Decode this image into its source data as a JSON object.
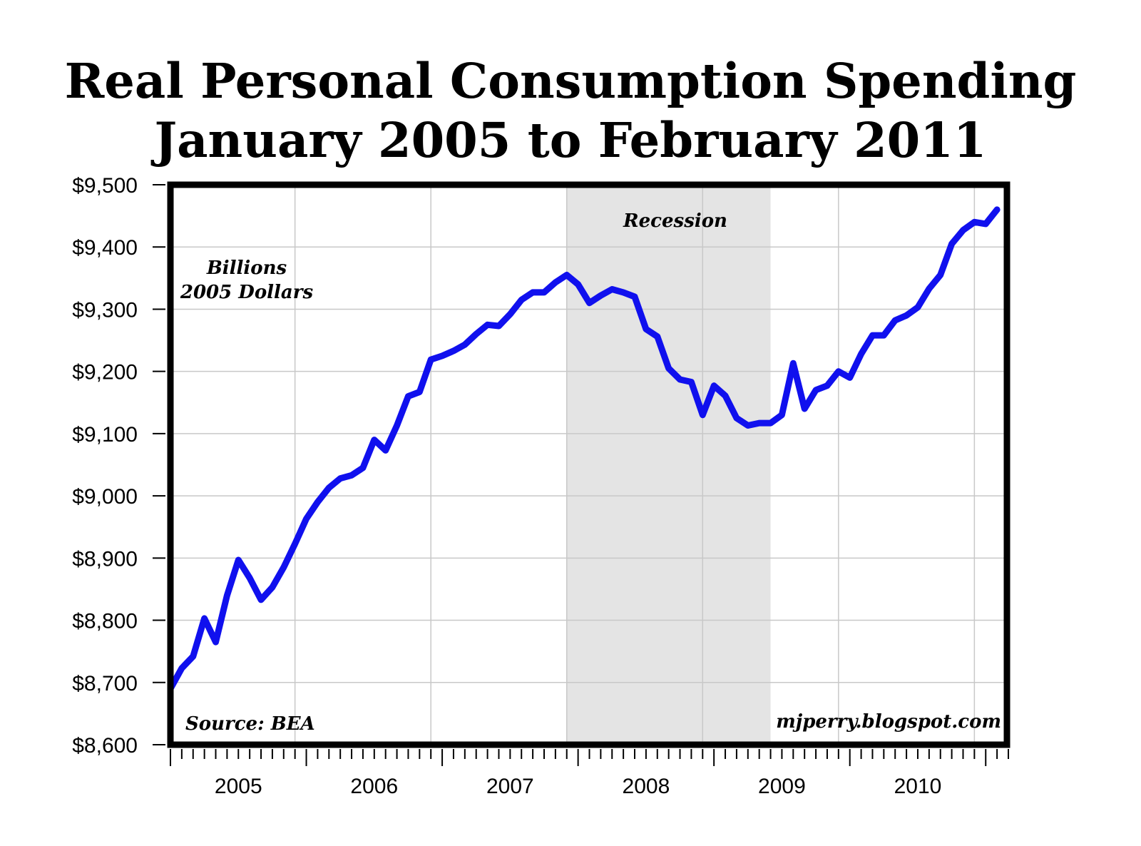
{
  "chart_data": {
    "type": "line",
    "title": "Real Personal Consumption Spending",
    "subtitle": "January 2005 to February 2011",
    "ylabel": "",
    "xlabel": "",
    "ylim": [
      8600,
      9500
    ],
    "yticks": [
      8600,
      8700,
      8800,
      8900,
      9000,
      9100,
      9200,
      9300,
      9400,
      9500
    ],
    "ytick_labels": [
      "$8,600",
      "$8,700",
      "$8,800",
      "$8,900",
      "$9,000",
      "$9,100",
      "$9,200",
      "$9,300",
      "$9,400",
      "$9,500"
    ],
    "xlim": [
      "2005-01",
      "2011-03"
    ],
    "xtick_labels": [
      "2005",
      "2006",
      "2007",
      "2008",
      "2009",
      "2010"
    ],
    "grid": true,
    "annotations": {
      "units_line1": "Billions",
      "units_line2": "2005 Dollars",
      "recession": "Recession",
      "source": "Source: BEA",
      "credit": "mjperry.blogspot.com"
    },
    "recession_span": [
      "2007-12",
      "2009-06"
    ],
    "series": [
      {
        "color": "#1010ee",
        "x": [
          "2005-01",
          "2005-02",
          "2005-03",
          "2005-04",
          "2005-05",
          "2005-06",
          "2005-07",
          "2005-08",
          "2005-09",
          "2005-10",
          "2005-11",
          "2005-12",
          "2006-01",
          "2006-02",
          "2006-03",
          "2006-04",
          "2006-05",
          "2006-06",
          "2006-07",
          "2006-08",
          "2006-09",
          "2006-10",
          "2006-11",
          "2006-12",
          "2007-01",
          "2007-02",
          "2007-03",
          "2007-04",
          "2007-05",
          "2007-06",
          "2007-07",
          "2007-08",
          "2007-09",
          "2007-10",
          "2007-11",
          "2007-12",
          "2008-01",
          "2008-02",
          "2008-03",
          "2008-04",
          "2008-05",
          "2008-06",
          "2008-07",
          "2008-08",
          "2008-09",
          "2008-10",
          "2008-11",
          "2008-12",
          "2009-01",
          "2009-02",
          "2009-03",
          "2009-04",
          "2009-05",
          "2009-06",
          "2009-07",
          "2009-08",
          "2009-09",
          "2009-10",
          "2009-11",
          "2009-12",
          "2010-01",
          "2010-02",
          "2010-03",
          "2010-04",
          "2010-05",
          "2010-06",
          "2010-07",
          "2010-08",
          "2010-09",
          "2010-10",
          "2010-11",
          "2010-12",
          "2011-01",
          "2011-02"
        ],
        "values": [
          8690,
          8723,
          8742,
          8803,
          8765,
          8840,
          8897,
          8868,
          8833,
          8853,
          8885,
          8923,
          8963,
          8990,
          9013,
          9028,
          9033,
          9045,
          9090,
          9073,
          9113,
          9160,
          9167,
          9219,
          9225,
          9233,
          9243,
          9260,
          9275,
          9273,
          9292,
          9315,
          9327,
          9327,
          9343,
          9355,
          9340,
          9310,
          9322,
          9332,
          9327,
          9320,
          9268,
          9256,
          9205,
          9187,
          9183,
          9130,
          9177,
          9161,
          9125,
          9113,
          9117,
          9117,
          9130,
          9213,
          9140,
          9170,
          9177,
          9200,
          9190,
          9228,
          9258,
          9258,
          9282,
          9290,
          9303,
          9333,
          9355,
          9405,
          9427,
          9440,
          9437,
          9460
        ]
      }
    ]
  }
}
